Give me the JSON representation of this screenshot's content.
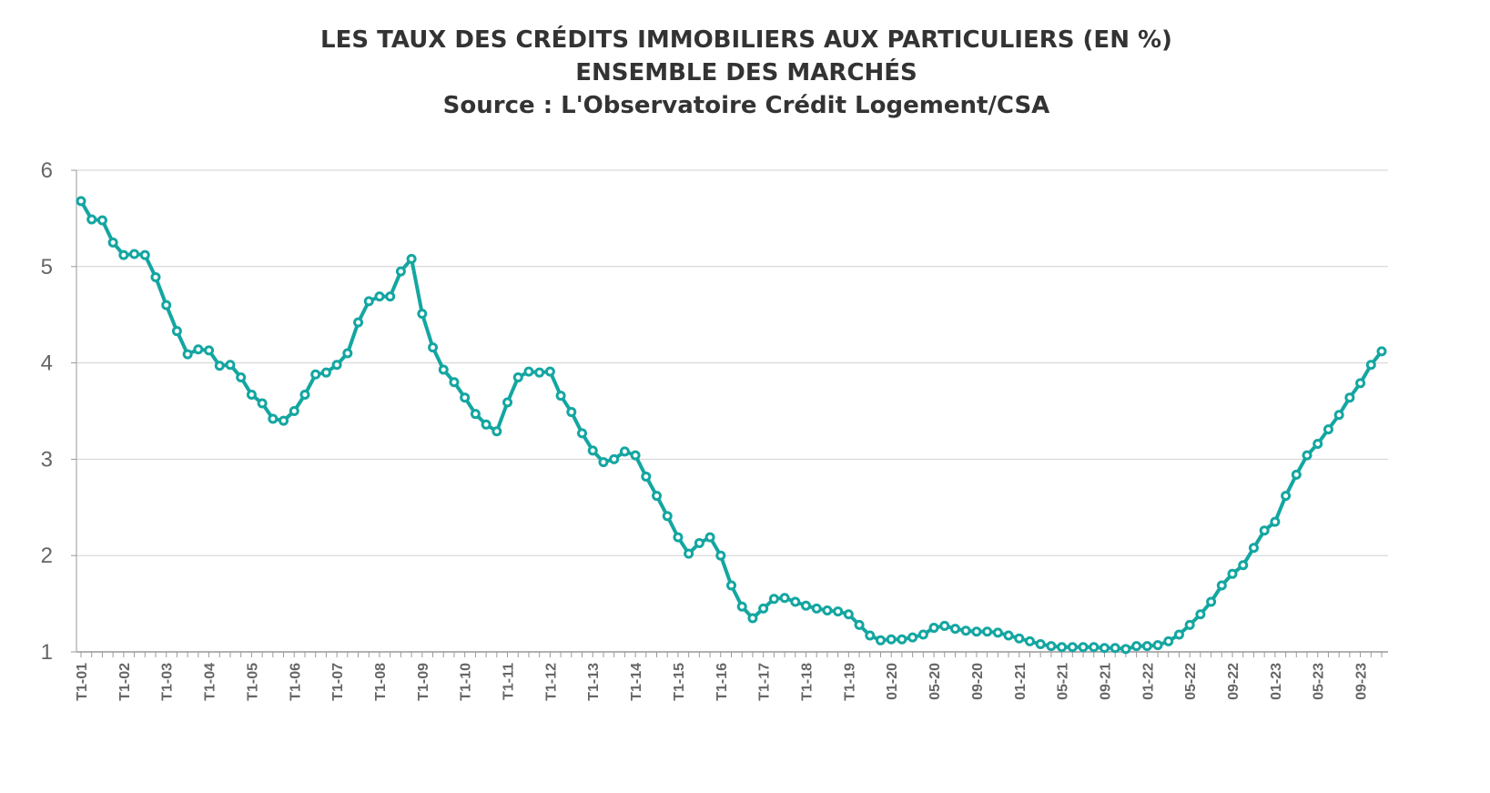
{
  "chart_data": {
    "type": "line",
    "title": "LES TAUX DES CRÉDITS IMMOBILIERS AUX PARTICULIERS (EN %)",
    "subtitle": "ENSEMBLE DES MARCHÉS",
    "source": "Source : L'Observatoire Crédit Logement/CSA",
    "categories": [
      "T1-01",
      null,
      null,
      null,
      "T1-02",
      null,
      null,
      null,
      "T1-03",
      null,
      null,
      null,
      "T1-04",
      null,
      null,
      null,
      "T1-05",
      null,
      null,
      null,
      "T1-06",
      null,
      null,
      null,
      "T1-07",
      null,
      null,
      null,
      "T1-08",
      null,
      null,
      null,
      "T1-09",
      null,
      null,
      null,
      "T1-10",
      null,
      null,
      null,
      "T1-11",
      null,
      null,
      null,
      "T1-12",
      null,
      null,
      null,
      "T1-13",
      null,
      null,
      null,
      "T1-14",
      null,
      null,
      null,
      "T1-15",
      null,
      null,
      null,
      "T1-16",
      null,
      null,
      null,
      "T1-17",
      null,
      null,
      null,
      "T1-18",
      null,
      null,
      null,
      "T1-19",
      null,
      null,
      null,
      "01-20",
      null,
      null,
      null,
      "05-20",
      null,
      null,
      null,
      "09-20",
      null,
      null,
      null,
      "01-21",
      null,
      null,
      null,
      "05-21",
      null,
      null,
      null,
      "09-21",
      null,
      null,
      null,
      "01-22",
      null,
      null,
      null,
      "05-22",
      null,
      null,
      null,
      "09-22",
      null,
      null,
      null,
      "01-23",
      null,
      null,
      null,
      "05-23",
      null,
      null,
      null,
      "09-23",
      null,
      null
    ],
    "series": [
      {
        "color": "#14a6a1",
        "values": [
          5.68,
          5.49,
          5.48,
          5.25,
          5.12,
          5.13,
          5.12,
          4.89,
          4.6,
          4.33,
          4.09,
          4.14,
          4.13,
          3.97,
          3.98,
          3.85,
          3.67,
          3.58,
          3.42,
          3.4,
          3.5,
          3.67,
          3.88,
          3.9,
          3.98,
          4.1,
          4.42,
          4.64,
          4.69,
          4.69,
          4.95,
          5.08,
          4.51,
          4.16,
          3.93,
          3.8,
          3.64,
          3.47,
          3.36,
          3.29,
          3.59,
          3.85,
          3.91,
          3.9,
          3.91,
          3.66,
          3.49,
          3.27,
          3.09,
          2.97,
          3.0,
          3.08,
          3.04,
          2.82,
          2.62,
          2.41,
          2.19,
          2.02,
          2.13,
          2.19,
          2.0,
          1.69,
          1.47,
          1.35,
          1.45,
          1.55,
          1.56,
          1.52,
          1.48,
          1.45,
          1.43,
          1.42,
          1.39,
          1.28,
          1.17,
          1.12,
          1.13,
          1.13,
          1.15,
          1.18,
          1.25,
          1.27,
          1.24,
          1.22,
          1.21,
          1.21,
          1.2,
          1.17,
          1.14,
          1.11,
          1.08,
          1.06,
          1.05,
          1.05,
          1.05,
          1.05,
          1.04,
          1.04,
          1.03,
          1.06,
          1.06,
          1.07,
          1.11,
          1.18,
          1.28,
          1.39,
          1.52,
          1.69,
          1.81,
          1.9,
          2.08,
          2.26,
          2.35,
          2.62,
          2.84,
          3.04,
          3.16,
          3.31,
          3.46,
          3.64,
          3.79,
          3.98,
          4.12
        ]
      }
    ],
    "ylim": [
      1,
      6
    ],
    "yticks": [
      1,
      2,
      3,
      4,
      5,
      6
    ],
    "grid": true
  }
}
